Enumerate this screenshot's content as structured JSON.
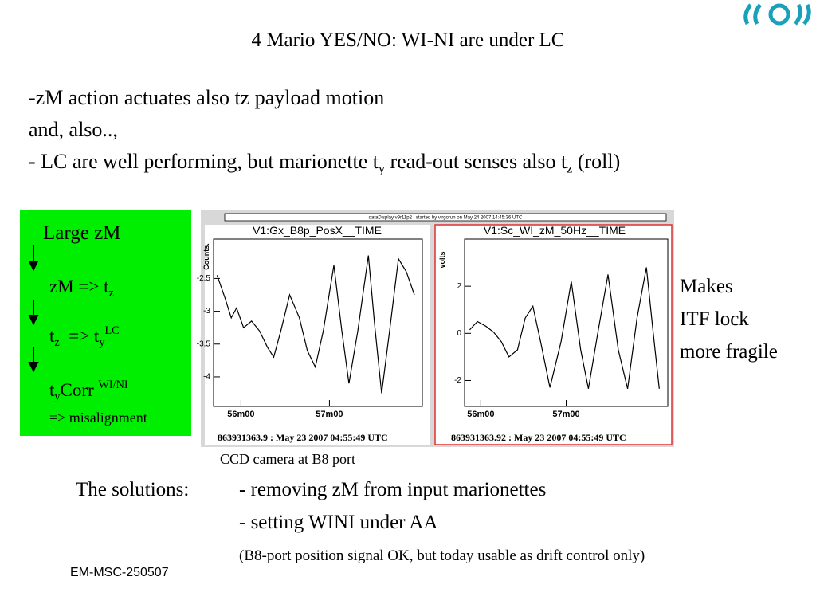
{
  "title": "4 Mario YES/NO: WI-NI are under LC",
  "intro": {
    "line1": "-zM action actuates also tz payload motion",
    "line2": "and, also..,",
    "line3": [
      "- LC are well performing, but marionette t",
      "y",
      " read-out senses also t",
      "z",
      " (roll)"
    ]
  },
  "sidebar": {
    "heading": "Large zM",
    "step1": [
      "zM => t",
      "z"
    ],
    "step2": [
      "t",
      "z",
      "  => t",
      "y",
      "LC"
    ],
    "step3": [
      "t",
      "y",
      "Corr ",
      "WI/NI"
    ],
    "step3_note": "=> misalignment"
  },
  "display_header": "dataDisplay v9r11p2 : started by virgorun on May 24 2007 14:45:36 UTC",
  "plots": [
    {
      "title": "V1:Gx_B8p_PosX__TIME",
      "y_label": "Counts.",
      "color": "#000000",
      "xlim": [
        55.69,
        58.05
      ],
      "ylim": [
        -4.45,
        -1.9
      ],
      "xticks": [
        {
          "value": 56,
          "label": "56m00"
        },
        {
          "value": 57,
          "label": "57m00"
        }
      ],
      "yticks": [
        -2.5,
        -3,
        -3.5,
        -4
      ],
      "x": [
        55.73,
        55.82,
        55.89,
        55.95,
        56.03,
        56.12,
        56.21,
        56.3,
        56.37,
        56.45,
        56.55,
        56.66,
        56.75,
        56.84,
        56.93,
        57.05,
        57.14,
        57.22,
        57.32,
        57.44,
        57.51,
        57.59,
        57.68,
        57.78,
        57.87,
        57.96
      ],
      "values": [
        -2.45,
        -2.8,
        -3.1,
        -2.95,
        -3.25,
        -3.15,
        -3.3,
        -3.55,
        -3.7,
        -3.3,
        -2.75,
        -3.1,
        -3.6,
        -3.85,
        -3.3,
        -2.3,
        -3.3,
        -4.1,
        -3.3,
        -2.15,
        -3.2,
        -4.25,
        -3.3,
        -2.2,
        -2.4,
        -2.75
      ],
      "footer": "863931363.9 : May 23 2007 04:55:49 UTC"
    },
    {
      "title": "V1:Sc_WI_zM_50Hz__TIME",
      "y_label": "volts",
      "color": "#000000",
      "xlim": [
        55.81,
        58.19
      ],
      "ylim": [
        -3.1,
        4
      ],
      "xticks": [
        {
          "value": 56,
          "label": "56m00"
        },
        {
          "value": 57,
          "label": "57m00"
        }
      ],
      "yticks": [
        2,
        0,
        -2
      ],
      "x": [
        55.87,
        55.96,
        56.06,
        56.15,
        56.24,
        56.33,
        56.43,
        56.52,
        56.61,
        56.7,
        56.81,
        56.94,
        57.06,
        57.17,
        57.26,
        57.37,
        57.49,
        57.61,
        57.72,
        57.83,
        57.94,
        58.02,
        58.09
      ],
      "values": [
        0.15,
        0.5,
        0.3,
        0.05,
        -0.35,
        -1.0,
        -0.7,
        0.65,
        1.15,
        -0.35,
        -2.3,
        -0.35,
        2.2,
        -0.7,
        -2.35,
        0,
        2.5,
        -0.7,
        -2.35,
        0.65,
        2.8,
        0,
        -2.35
      ],
      "footer": "863931363.92 : May 23 2007 04:55:49 UTC"
    }
  ],
  "caption": "CCD camera at B8 port",
  "side_note": [
    "Makes",
    "ITF lock",
    "more fragile"
  ],
  "solutions": {
    "label": "The solutions:",
    "items": [
      "- removing zM from input marionettes",
      "- setting WINI under AA"
    ],
    "note": "(B8-port position signal OK, but today usable as drift control only)"
  },
  "footer": "EM-MSC-250507"
}
